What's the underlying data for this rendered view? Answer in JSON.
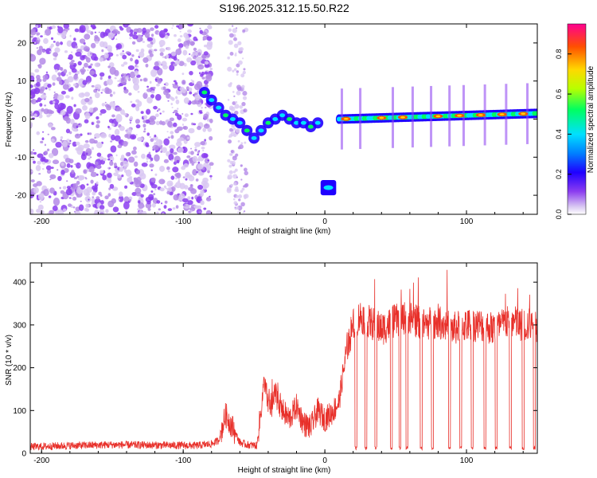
{
  "title": "S196.2025.312.15.50.R22",
  "colors": {
    "snr_line": "#e8302a",
    "speckle": "#7a2bd6",
    "colormap": [
      "#ffffff",
      "#d9c8f2",
      "#8b3df0",
      "#1f00ff",
      "#0080ff",
      "#00e0ff",
      "#00ff60",
      "#b8ff00",
      "#ffd800",
      "#ff5000",
      "#ff0090"
    ]
  },
  "chart_data": [
    {
      "type": "heatmap",
      "title": "S196.2025.312.15.50.R22",
      "xlabel": "Height of straight line (km)",
      "ylabel": "Frequency (Hz)",
      "xlim": [
        -208,
        150
      ],
      "ylim": [
        -25,
        25
      ],
      "xticks": [
        -200,
        -100,
        0,
        100
      ],
      "yticks": [
        -20,
        -10,
        0,
        10,
        20
      ],
      "colorbar": {
        "label": "Normalized spectral amplitude",
        "range": [
          0.0,
          0.95
        ],
        "ticks": [
          "0.0",
          "0.2",
          "0.4",
          "0.6",
          "0.8"
        ]
      },
      "features": {
        "noise_region_x": [
          -208,
          -80
        ],
        "secondary_noise_x": [
          -68,
          -55
        ],
        "descending_trace": [
          [
            -85,
            7
          ],
          [
            -80,
            5
          ],
          [
            -75,
            3
          ],
          [
            -70,
            1
          ],
          [
            -65,
            0
          ],
          [
            -60,
            -1
          ],
          [
            -55,
            -3
          ],
          [
            -50,
            -5
          ],
          [
            -45,
            -3
          ],
          [
            -40,
            -1
          ],
          [
            -35,
            0
          ],
          [
            -30,
            1
          ],
          [
            -25,
            0
          ],
          [
            -20,
            -1
          ],
          [
            -15,
            -1
          ],
          [
            -10,
            -2
          ],
          [
            -5,
            -1
          ]
        ],
        "isolated_blob": {
          "x": [
            -3,
            8
          ],
          "freq": -18
        },
        "main_trace": {
          "x": [
            10,
            150
          ],
          "freq_start": 0,
          "freq_end": 1.5
        },
        "hot_spots_x": [
          15,
          40,
          55,
          80,
          95,
          110,
          125,
          140
        ]
      }
    },
    {
      "type": "line",
      "xlabel": "Height of straight line (km)",
      "ylabel": "SNR (10 * v/v)",
      "xlim": [
        -208,
        150
      ],
      "ylim": [
        0,
        445
      ],
      "xticks": [
        -200,
        -100,
        0,
        100
      ],
      "yticks": [
        0,
        100,
        200,
        300,
        400
      ],
      "series": [
        {
          "name": "SNR",
          "x": [
            -208,
            -180,
            -150,
            -120,
            -90,
            -80,
            -75,
            -70,
            -65,
            -60,
            -55,
            -48,
            -43,
            -40,
            -38,
            -35,
            -30,
            -25,
            -20,
            -15,
            -10,
            -5,
            0,
            5,
            10,
            13,
            16,
            20,
            25,
            30,
            35,
            40,
            50,
            60,
            70,
            80,
            90,
            100,
            110,
            120,
            130,
            140,
            150
          ],
          "values": [
            15,
            18,
            20,
            19,
            18,
            22,
            30,
            90,
            60,
            25,
            20,
            18,
            160,
            120,
            95,
            140,
            100,
            80,
            110,
            70,
            60,
            100,
            80,
            95,
            120,
            190,
            250,
            300,
            320,
            310,
            300,
            290,
            310,
            320,
            300,
            310,
            290,
            300,
            300,
            290,
            310,
            300,
            300
          ]
        }
      ],
      "dropout_x": [
        22,
        29,
        36,
        47,
        53,
        58,
        68,
        76,
        88,
        96,
        104,
        113,
        121,
        131,
        140,
        148
      ]
    }
  ]
}
